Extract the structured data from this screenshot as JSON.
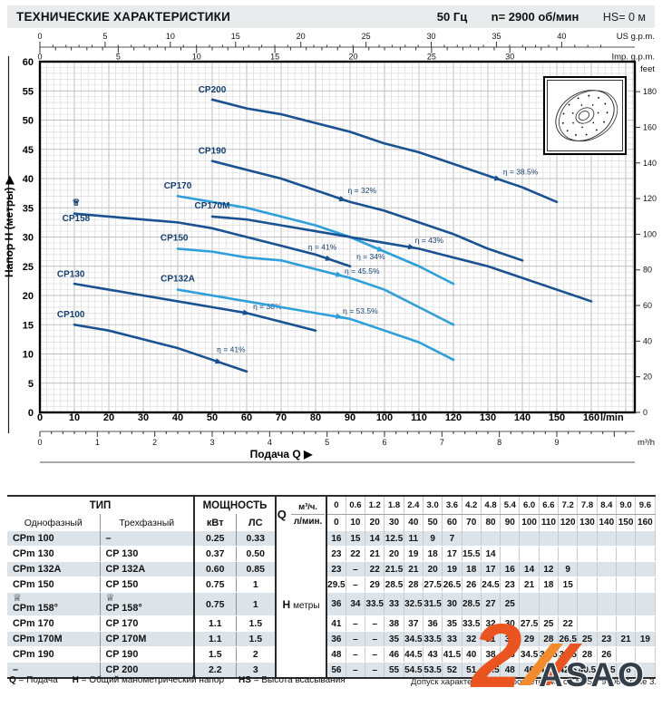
{
  "header": {
    "title": "ТЕХНИЧЕСКИЕ ХАРАКТЕРИСТИКИ",
    "freq": "50 Гц",
    "speed": "n= 2900  об/мин",
    "suction": "HS= 0 м"
  },
  "chart_data": {
    "type": "line",
    "xlabel": "Подача Q  ▶",
    "ylabel": "Напор H (метры)  ▶",
    "xlim_lmin": [
      0,
      172
    ],
    "ylim_m": [
      0,
      60
    ],
    "axes": {
      "h_ticks": [
        0,
        5,
        10,
        15,
        20,
        25,
        30,
        35,
        40,
        45,
        50,
        55,
        60
      ],
      "lmin_ticks": [
        0,
        10,
        20,
        30,
        40,
        50,
        60,
        70,
        80,
        90,
        100,
        110,
        120,
        130,
        140,
        150,
        160
      ],
      "lmin_unit": "l/min",
      "m3h_ticks": [
        0,
        1,
        2,
        3,
        4,
        5,
        6,
        7,
        8,
        9
      ],
      "m3h_unit": "m³/h",
      "us_ticks": [
        0,
        5,
        10,
        15,
        20,
        25,
        30,
        35,
        40
      ],
      "us_unit": "US g.p.m.",
      "imp_ticks": [
        0,
        5,
        10,
        15,
        20,
        25,
        30
      ],
      "imp_unit": "Imp. g.p.m.",
      "feet_ticks": [
        0,
        20,
        40,
        60,
        80,
        100,
        120,
        140,
        160,
        180
      ],
      "feet_unit": "feet"
    },
    "series": [
      {
        "name": "CP100",
        "color": "dark",
        "x": [
          10,
          20,
          30,
          40,
          50,
          60
        ],
        "y": [
          15,
          14,
          12.5,
          11,
          9,
          7
        ],
        "label_at": [
          9,
          16.3
        ],
        "eta": {
          "text": "η = 41%",
          "label_at": [
            55.5,
            10.3
          ],
          "arrow_at": 53
        }
      },
      {
        "name": "CP130",
        "color": "dark",
        "x": [
          10,
          20,
          30,
          40,
          50,
          60,
          70,
          80
        ],
        "y": [
          22,
          21,
          20,
          19,
          18,
          17,
          15.5,
          14
        ],
        "label_at": [
          9,
          23.2
        ],
        "eta": {
          "text": "η = 38%",
          "label_at": [
            66,
            17.7
          ],
          "arrow_at": 61
        }
      },
      {
        "name": "CP132A",
        "color": "light",
        "x": [
          40,
          50,
          60,
          70,
          80,
          90,
          100,
          110,
          120
        ],
        "y": [
          21,
          20,
          19,
          18,
          17,
          16,
          14,
          12,
          9
        ],
        "label_at": [
          40,
          22.4
        ],
        "eta": {
          "text": "η = 53.5%",
          "label_at": [
            93,
            16.9
          ],
          "arrow_at": 88
        }
      },
      {
        "name": "CP150",
        "color": "light",
        "x": [
          40,
          50,
          60,
          70,
          80,
          90,
          100,
          110,
          120
        ],
        "y": [
          28,
          27.5,
          26.5,
          26,
          24.5,
          23,
          21,
          18,
          15
        ],
        "label_at": [
          39,
          29.4
        ],
        "eta": {
          "text": "η = 45.5%",
          "label_at": [
            93.5,
            23.7
          ],
          "arrow_at": 88
        }
      },
      {
        "name": "CP158",
        "color": "dark",
        "x": [
          10,
          20,
          30,
          40,
          50,
          60,
          70,
          80,
          90
        ],
        "y": [
          34,
          33.5,
          33,
          32.5,
          31.5,
          30,
          28.5,
          27,
          25
        ],
        "label_at": [
          10.5,
          32.7
        ],
        "crown_at": [
          10.5,
          35.4
        ],
        "eta": {
          "text": "η = 41%",
          "label_at": [
            82,
            27.8
          ],
          "arrow_at": 85
        }
      },
      {
        "name": "CP170",
        "color": "light",
        "x": [
          40,
          50,
          60,
          70,
          80,
          90,
          100,
          110,
          120
        ],
        "y": [
          37,
          36,
          35,
          33.5,
          32,
          30,
          27.5,
          25,
          22
        ],
        "label_at": [
          40,
          38.3
        ],
        "eta": {
          "text": "η = 34%",
          "label_at": [
            96,
            26.2
          ],
          "arrow_at": 100
        }
      },
      {
        "name": "CP170M",
        "color": "dark",
        "x": [
          50,
          60,
          70,
          80,
          90,
          100,
          110,
          120,
          130,
          140,
          150,
          160
        ],
        "y": [
          33.5,
          33,
          32,
          31,
          30,
          29,
          28,
          26.5,
          25,
          23,
          21,
          19
        ],
        "label_at": [
          50,
          34.9
        ],
        "eta": {
          "text": "η = 43%",
          "label_at": [
            113,
            29
          ],
          "arrow_at": 109
        }
      },
      {
        "name": "CP190",
        "color": "dark",
        "x": [
          50,
          60,
          70,
          80,
          90,
          100,
          110,
          120,
          130,
          140
        ],
        "y": [
          43,
          41.5,
          40,
          38,
          36,
          34.5,
          32.5,
          30.5,
          28,
          26
        ],
        "label_at": [
          50,
          44.3
        ],
        "eta": {
          "text": "η = 32%",
          "label_at": [
            93.5,
            37.5
          ],
          "arrow_at": 89
        }
      },
      {
        "name": "CP200",
        "color": "dark",
        "x": [
          50,
          60,
          70,
          80,
          90,
          100,
          110,
          120,
          130,
          140,
          150
        ],
        "y": [
          53.5,
          52,
          51,
          49.5,
          48,
          46,
          44.5,
          42.5,
          40.5,
          38.5,
          36
        ],
        "label_at": [
          50,
          54.7
        ],
        "eta": {
          "text": "η = 38.5%",
          "label_at": [
            139.5,
            40.7
          ],
          "arrow_at": 134
        }
      }
    ],
    "crown_glyph": "♕",
    "legend_position": "on-curve-labels",
    "grid": true
  },
  "table": {
    "type_header": "ТИП",
    "power_header": "МОЩНОСТЬ",
    "col_single": "Однофазный",
    "col_triple": "Трехфазный",
    "col_kw": "кВт",
    "col_hp": "ЛС",
    "q_label": "Q",
    "m3h_label": "м³/ч.",
    "lmin_label": "л/мин.",
    "h_label": "H",
    "h_unit": "метры",
    "crown_glyph": "♕",
    "q_m3h": [
      "0",
      "0.6",
      "1.2",
      "1.8",
      "2.4",
      "3.0",
      "3.6",
      "4.2",
      "4.8",
      "5.4",
      "6.0",
      "6.6",
      "7.2",
      "7.8",
      "8.4",
      "9.0",
      "9.6"
    ],
    "q_lmin": [
      "0",
      "10",
      "20",
      "30",
      "40",
      "50",
      "60",
      "70",
      "80",
      "90",
      "100",
      "110",
      "120",
      "130",
      "140",
      "150",
      "160"
    ],
    "rows": [
      {
        "single": "CPm 100",
        "triple": "–",
        "kw": "0.25",
        "hp": "0.33",
        "crown": false,
        "values": [
          "16",
          "15",
          "14",
          "12.5",
          "11",
          "9",
          "7",
          "",
          "",
          "",
          "",
          "",
          "",
          "",
          "",
          "",
          ""
        ]
      },
      {
        "single": "CPm 130",
        "triple": "CP 130",
        "kw": "0.37",
        "hp": "0.50",
        "crown": false,
        "values": [
          "23",
          "22",
          "21",
          "20",
          "19",
          "18",
          "17",
          "15.5",
          "14",
          "",
          "",
          "",
          "",
          "",
          "",
          "",
          ""
        ]
      },
      {
        "single": "CPm 132A",
        "triple": "CP 132A",
        "kw": "0.60",
        "hp": "0.85",
        "crown": false,
        "values": [
          "23",
          "–",
          "22",
          "21.5",
          "21",
          "20",
          "19",
          "18",
          "17",
          "16",
          "14",
          "12",
          "9",
          "",
          "",
          "",
          ""
        ]
      },
      {
        "single": "CPm 150",
        "triple": "CP 150",
        "kw": "0.75",
        "hp": "1",
        "crown": false,
        "values": [
          "29.5",
          "–",
          "29",
          "28.5",
          "28",
          "27.5",
          "26.5",
          "26",
          "24.5",
          "23",
          "21",
          "18",
          "15",
          "",
          "",
          "",
          ""
        ]
      },
      {
        "single": "CPm 158°",
        "triple": "CP 158°",
        "kw": "0.75",
        "hp": "1",
        "crown": true,
        "values": [
          "36",
          "34",
          "33.5",
          "33",
          "32.5",
          "31.5",
          "30",
          "28.5",
          "27",
          "25",
          "",
          "",
          "",
          "",
          "",
          "",
          ""
        ]
      },
      {
        "single": "CPm 170",
        "triple": "CP 170",
        "kw": "1.1",
        "hp": "1.5",
        "crown": false,
        "values": [
          "41",
          "–",
          "–",
          "38",
          "37",
          "36",
          "35",
          "33.5",
          "32",
          "30",
          "27.5",
          "25",
          "22",
          "",
          "",
          "",
          ""
        ]
      },
      {
        "single": "CPm 170M",
        "triple": "CP 170M",
        "kw": "1.1",
        "hp": "1.5",
        "crown": false,
        "values": [
          "36",
          "–",
          "–",
          "35",
          "34.5",
          "33.5",
          "33",
          "32",
          "31",
          "30",
          "29",
          "28",
          "26.5",
          "25",
          "23",
          "21",
          "19"
        ]
      },
      {
        "single": "CPm 190",
        "triple": "CP 190",
        "kw": "1.5",
        "hp": "2",
        "crown": false,
        "values": [
          "48",
          "–",
          "–",
          "46",
          "44.5",
          "43",
          "41.5",
          "40",
          "38",
          "36",
          "34.5",
          "32.5",
          "30.5",
          "28",
          "26",
          "",
          ""
        ]
      },
      {
        "single": "–",
        "triple": "CP 200",
        "kw": "2.2",
        "hp": "3",
        "crown": false,
        "values": [
          "56",
          "–",
          "–",
          "55",
          "54.5",
          "53.5",
          "52",
          "51",
          "49.5",
          "48",
          "46",
          "44.5",
          "42.5",
          "40.5",
          "38.5",
          "36",
          ""
        ]
      }
    ]
  },
  "footer": {
    "legend": [
      {
        "k": "Q",
        "v": "= Подача"
      },
      {
        "k": "H",
        "v": "= Общий манометрический напор"
      },
      {
        "k": "HS",
        "v": "= Высота всасывания"
      }
    ],
    "tolerance": "Допуск характеристик в соответствии с EN ISO 9906 Grade 3."
  },
  "watermark": {
    "logo_text": "2",
    "brand": "ASAO"
  }
}
